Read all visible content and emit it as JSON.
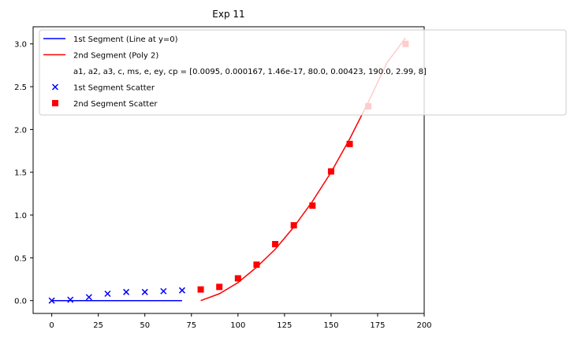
{
  "chart_data": {
    "type": "scatter",
    "title": "Exp 11",
    "xlabel": "",
    "ylabel": "",
    "xlim": [
      -10,
      200
    ],
    "ylim": [
      -0.15,
      3.2
    ],
    "x_ticks": [
      0,
      25,
      50,
      75,
      100,
      125,
      150,
      175,
      200
    ],
    "y_ticks": [
      0.0,
      0.5,
      1.0,
      1.5,
      2.0,
      2.5,
      3.0
    ],
    "x_tick_labels": [
      "0",
      "25",
      "50",
      "75",
      "100",
      "125",
      "150",
      "175",
      "200"
    ],
    "y_tick_labels": [
      "0.0",
      "0.5",
      "1.0",
      "1.5",
      "2.0",
      "2.5",
      "3.0"
    ],
    "grid": false,
    "legend_position": "top-left",
    "series": [
      {
        "name": "1st Segment (Line at y=0)",
        "kind": "line",
        "color": "#0000ff",
        "x": [
          0,
          70
        ],
        "y": [
          0,
          0
        ]
      },
      {
        "name": "2nd Segment (Poly 2)",
        "kind": "line",
        "color": "#ff0000",
        "x": [
          80,
          90,
          100,
          110,
          120,
          130,
          140,
          150,
          160,
          170,
          180,
          190
        ],
        "y": [
          0.0,
          0.08,
          0.21,
          0.39,
          0.6,
          0.86,
          1.16,
          1.5,
          1.89,
          2.32,
          2.78,
          3.07
        ]
      },
      {
        "name": "1st Segment Scatter",
        "kind": "scatter",
        "marker": "x",
        "color": "#0000ff",
        "x": [
          0,
          10,
          20,
          30,
          40,
          50,
          60,
          70
        ],
        "y": [
          0.0,
          0.01,
          0.04,
          0.08,
          0.1,
          0.1,
          0.11,
          0.12
        ]
      },
      {
        "name": "2nd Segment Scatter",
        "kind": "scatter",
        "marker": "square",
        "color": "#ff0000",
        "x": [
          80,
          90,
          100,
          110,
          120,
          130,
          140,
          150,
          160,
          170,
          190
        ],
        "y": [
          0.13,
          0.16,
          0.26,
          0.42,
          0.66,
          0.88,
          1.11,
          1.51,
          1.83,
          2.27,
          3.0
        ]
      }
    ],
    "legend": [
      {
        "label": "1st Segment (Line at y=0)",
        "symbol": "line",
        "color": "#0000ff"
      },
      {
        "label": "2nd Segment (Poly 2)",
        "symbol": "line",
        "color": "#ff0000"
      },
      {
        "label": "a1, a2, a3, c, ms, e, ey, cp = [0.0095, 0.000167, 1.46e-17, 80.0, 0.00423, 190.0, 2.99, 8]",
        "symbol": "none",
        "color": ""
      },
      {
        "label": "1st Segment Scatter",
        "symbol": "x",
        "color": "#0000ff"
      },
      {
        "label": "2nd Segment Scatter",
        "symbol": "square",
        "color": "#ff0000"
      }
    ]
  }
}
